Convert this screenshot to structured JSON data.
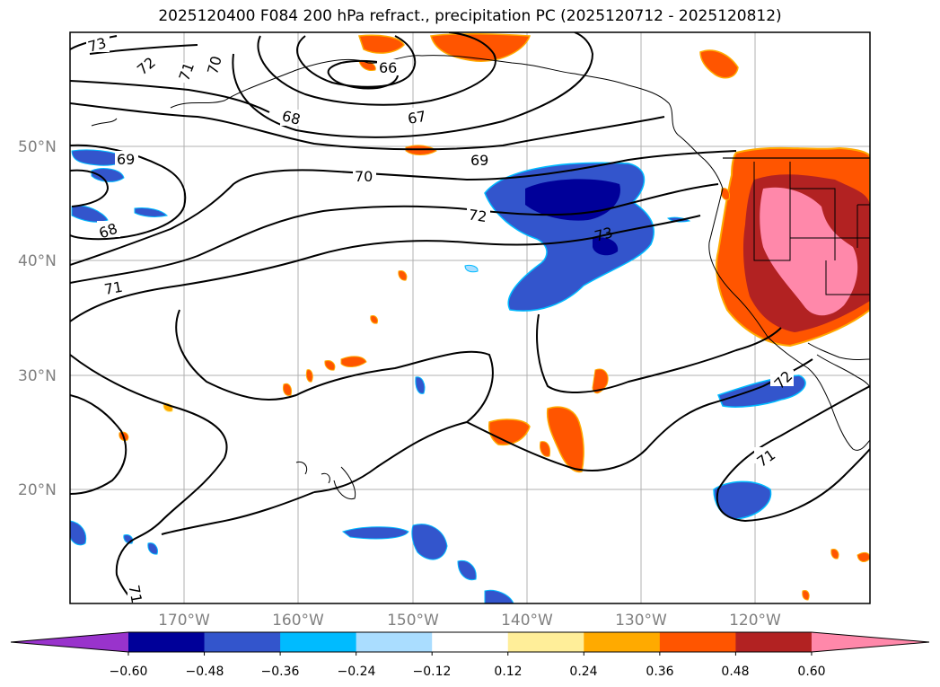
{
  "title": "2025120400 F084 200 hPa refract., precipitation PC (2025120712 - 2025120812)",
  "lat_labels": [
    "50°N",
    "40°N",
    "30°N",
    "20°N"
  ],
  "lon_labels": [
    "170°W",
    "160°W",
    "150°W",
    "140°W",
    "130°W",
    "120°W"
  ],
  "contour_labels": [
    "73",
    "72",
    "71",
    "70",
    "66",
    "68",
    "67",
    "69",
    "70",
    "72",
    "73",
    "69",
    "68",
    "71",
    "71",
    "72",
    "71"
  ],
  "colorbar": {
    "colors": [
      "#9933cc",
      "#000099",
      "#3355cc",
      "#00bbff",
      "#aaddff",
      "#ffffff",
      "#ffee99",
      "#ffaa00",
      "#ff5500",
      "#b22222",
      "#ff88aa"
    ],
    "ticks": [
      "−0.60",
      "−0.48",
      "−0.36",
      "−0.24",
      "−0.12",
      "0.12",
      "0.24",
      "0.36",
      "0.48",
      "0.60"
    ]
  }
}
